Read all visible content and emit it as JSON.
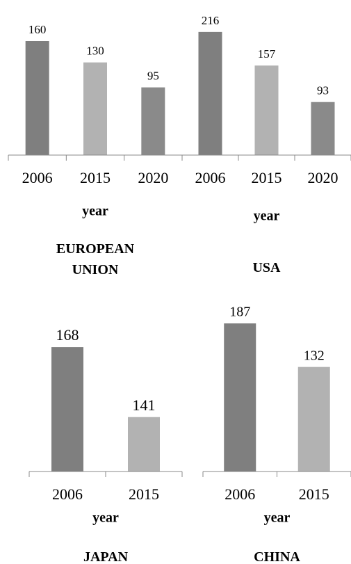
{
  "chart_data": [
    {
      "type": "bar",
      "title": "EUROPEAN UNION",
      "xlabel": "year",
      "categories": [
        "2006",
        "2015",
        "2020"
      ],
      "values": [
        160,
        130,
        95
      ],
      "colors": [
        "#7f7f7f",
        "#b2b2b2",
        "#8a8a8a"
      ],
      "ylim": [
        0,
        200
      ]
    },
    {
      "type": "bar",
      "title": "USA",
      "xlabel": "year",
      "categories": [
        "2006",
        "2015",
        "2020"
      ],
      "values": [
        216,
        157,
        93
      ],
      "colors": [
        "#7f7f7f",
        "#b2b2b2",
        "#8a8a8a"
      ],
      "ylim": [
        0,
        250
      ]
    },
    {
      "type": "bar",
      "title": "JAPAN",
      "xlabel": "year",
      "categories": [
        "2006",
        "2015"
      ],
      "values": [
        168,
        141
      ],
      "colors": [
        "#7f7f7f",
        "#b2b2b2"
      ],
      "ylim": [
        120,
        175
      ]
    },
    {
      "type": "bar",
      "title": "CHINA",
      "xlabel": "year",
      "categories": [
        "2006",
        "2015"
      ],
      "values": [
        187,
        132
      ],
      "colors": [
        "#7f7f7f",
        "#b2b2b2"
      ],
      "ylim": [
        0,
        180
      ]
    }
  ]
}
